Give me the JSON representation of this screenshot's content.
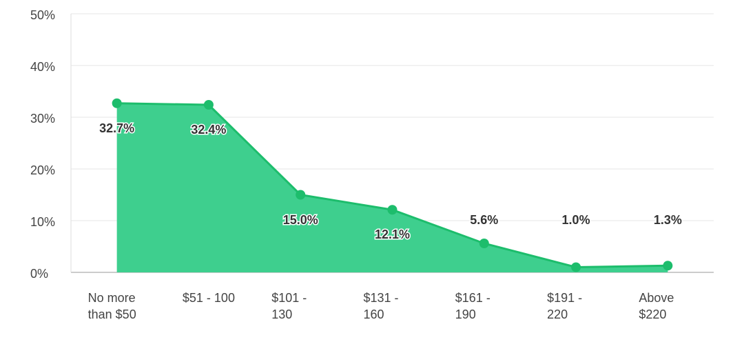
{
  "chart_data": {
    "type": "area",
    "categories": [
      "No more than $50",
      "$51 - 100",
      "$101 - 130",
      "$131 - 160",
      "$161 - 190",
      "$191 - 220",
      "Above $220"
    ],
    "values": [
      32.7,
      32.4,
      15.0,
      12.1,
      5.6,
      1.0,
      1.3
    ],
    "value_labels": [
      "32.7%",
      "32.4%",
      "15.0%",
      "12.1%",
      "5.6%",
      "1.0%",
      "1.3%"
    ],
    "fill_color": "#3ecf8e",
    "line_color": "#1dbd6c",
    "ylim": [
      0,
      50
    ],
    "yticks": [
      {
        "value": 0,
        "label": "0%"
      },
      {
        "value": 10,
        "label": "10%"
      },
      {
        "value": 20,
        "label": "20%"
      },
      {
        "value": 30,
        "label": "30%"
      },
      {
        "value": 40,
        "label": "40%"
      },
      {
        "value": 50,
        "label": "50%"
      }
    ],
    "grid": true
  }
}
